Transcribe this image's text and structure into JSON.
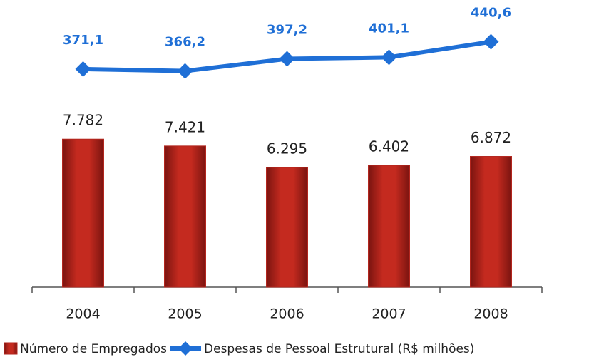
{
  "chart_data": {
    "type": "bar",
    "categories": [
      "2004",
      "2005",
      "2006",
      "2007",
      "2008"
    ],
    "series": [
      {
        "name": "Número de Empregados",
        "type": "bar",
        "color": "#b3261e",
        "values": [
          7782,
          7421,
          6295,
          6402,
          6872
        ],
        "value_labels": [
          "7.782",
          "7.421",
          "6.295",
          "6.402",
          "6.872"
        ]
      },
      {
        "name": "Despesas de Pessoal Estrutural (R$ milhões)",
        "type": "line",
        "axis": "y2",
        "color": "#1f6fd6",
        "values": [
          371.1,
          366.2,
          397.2,
          401.1,
          440.6
        ],
        "value_labels": [
          "371,1",
          "366,2",
          "397,2",
          "401,1",
          "440,6"
        ]
      }
    ],
    "ylim": [
      0,
      10000
    ],
    "y2lim": [
      300,
      500
    ]
  }
}
